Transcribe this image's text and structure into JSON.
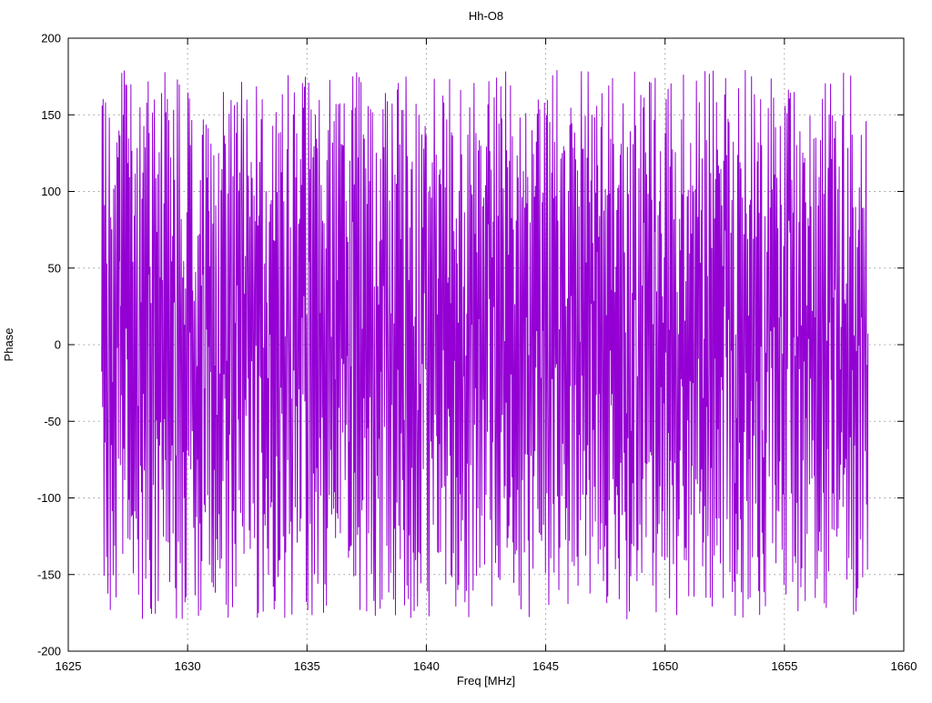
{
  "chart_data": {
    "type": "line",
    "title": "Hh-O8",
    "xlabel": "Freq [MHz]",
    "ylabel": "Phase",
    "xlim": [
      1625,
      1660
    ],
    "ylim": [
      -200,
      200
    ],
    "xticks": [
      1625,
      1630,
      1635,
      1640,
      1645,
      1650,
      1655,
      1660
    ],
    "yticks": [
      -200,
      -150,
      -100,
      -50,
      0,
      50,
      100,
      150,
      200
    ],
    "grid": true,
    "legend": "none",
    "line_color": "#9400d3",
    "grid_color": "#9a9a9a",
    "border_color": "#000000",
    "note": "Dense wrapped interferometric phase noise: values jump pseudo-randomly within about -180..180 degrees across the band 1626.4-1658.5 MHz; individual points are unresolvable, so the series is reproduced with a deterministic seeded generator matching range and density.",
    "synthetic_series": {
      "seed": 1337,
      "n_points": 1600,
      "x_start": 1626.4,
      "x_end": 1658.5,
      "wrap_deg": 180,
      "amp_max": 179,
      "step_min_deg": 70,
      "step_max_deg": 310
    }
  }
}
